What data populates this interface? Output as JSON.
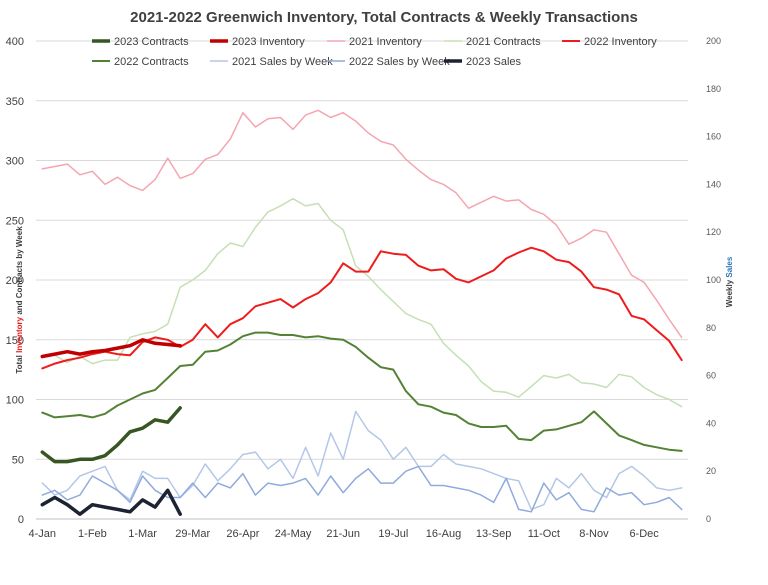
{
  "chart_data": {
    "type": "line",
    "title": "2021-2022 Greenwich Inventory, Total Contracts & Weekly Transactions",
    "ylabel_left_parts": [
      "Total ",
      "Inventory",
      " and Contracts by Week"
    ],
    "ylabel_right_parts": [
      "Weekly ",
      "Sales"
    ],
    "ylim_left": [
      0,
      400
    ],
    "ylim_right": [
      0,
      200
    ],
    "yticks_left": [
      "0",
      "50",
      "100",
      "150",
      "200",
      "250",
      "300",
      "350",
      "400"
    ],
    "yticks_right": [
      "0",
      "20",
      "40",
      "60",
      "80",
      "100",
      "120",
      "140",
      "160",
      "180",
      "200"
    ],
    "x_tick_labels": [
      "4-Jan",
      "1-Feb",
      "1-Mar",
      "29-Mar",
      "26-Apr",
      "24-May",
      "21-Jun",
      "19-Jul",
      "16-Aug",
      "13-Sep",
      "11-Oct",
      "8-Nov",
      "6-Dec"
    ],
    "x_tick_weeks": [
      0,
      4,
      8,
      12,
      16,
      20,
      24,
      28,
      32,
      36,
      40,
      44,
      48
    ],
    "grid": true,
    "legend_position": "top",
    "series": [
      {
        "name": "2023 Contracts",
        "axis": "left",
        "color": "#375623",
        "width": 3.5,
        "values": [
          56,
          48,
          48,
          50,
          50,
          53,
          62,
          73,
          76,
          83,
          81,
          93
        ]
      },
      {
        "name": "2023 Inventory",
        "axis": "left",
        "color": "#c00000",
        "width": 3.5,
        "values": [
          136,
          138,
          140,
          138,
          140,
          141,
          143,
          145,
          150,
          147,
          146,
          145
        ]
      },
      {
        "name": "2021 Inventory",
        "axis": "left",
        "color": "#f4a6b0",
        "width": 1.5,
        "values": [
          293,
          295,
          297,
          288,
          291,
          280,
          286,
          279,
          275,
          284,
          302,
          285,
          289,
          301,
          305,
          318,
          340,
          328,
          335,
          336,
          326,
          338,
          342,
          336,
          340,
          333,
          323,
          316,
          313,
          301,
          292,
          284,
          280,
          273,
          260,
          265,
          270,
          266,
          267,
          259,
          255,
          246,
          230,
          235,
          242,
          240,
          222,
          204,
          198,
          183,
          167,
          152
        ]
      },
      {
        "name": "2021 Contracts",
        "axis": "left",
        "color": "#c5e0b4",
        "width": 1.5,
        "values": [
          136,
          137,
          131,
          136,
          130,
          133,
          133,
          152,
          155,
          157,
          163,
          194,
          200,
          208,
          222,
          231,
          228,
          244,
          257,
          262,
          268,
          262,
          264,
          250,
          242,
          212,
          203,
          192,
          182,
          172,
          167,
          163,
          147,
          137,
          128,
          115,
          107,
          106,
          102,
          111,
          120,
          118,
          121,
          114,
          113,
          110,
          121,
          119,
          110,
          104,
          100,
          94
        ]
      },
      {
        "name": "2022 Inventory",
        "axis": "left",
        "color": "#ee1c1c",
        "width": 2,
        "values": [
          126,
          130,
          133,
          135,
          138,
          140,
          138,
          137,
          148,
          152,
          150,
          144,
          150,
          163,
          152,
          163,
          168,
          178,
          181,
          184,
          177,
          184,
          189,
          198,
          214,
          207,
          207,
          224,
          222,
          221,
          212,
          208,
          209,
          201,
          198,
          203,
          208,
          218,
          223,
          227,
          224,
          217,
          215,
          207,
          194,
          192,
          188,
          170,
          167,
          158,
          149,
          133
        ]
      },
      {
        "name": "2022 Contracts",
        "axis": "left",
        "color": "#548235",
        "width": 2,
        "values": [
          89,
          85,
          86,
          87,
          85,
          88,
          95,
          100,
          105,
          108,
          118,
          128,
          129,
          140,
          141,
          146,
          153,
          156,
          156,
          154,
          154,
          152,
          153,
          151,
          150,
          144,
          135,
          127,
          125,
          107,
          96,
          94,
          89,
          87,
          80,
          77,
          77,
          78,
          67,
          66,
          74,
          75,
          78,
          81,
          90,
          80,
          70,
          66,
          62,
          60,
          58,
          57
        ]
      },
      {
        "name": "2021 Sales by Week",
        "axis": "right",
        "color": "#b4c7e7",
        "width": 1.5,
        "values": [
          15,
          10,
          12,
          18,
          20,
          22,
          12,
          8,
          20,
          17,
          17,
          9,
          14,
          23,
          16,
          21,
          27,
          28,
          21,
          25,
          17,
          30,
          18,
          36,
          25,
          45,
          37,
          33,
          25,
          30,
          22,
          22,
          27,
          23,
          22,
          21,
          19,
          17,
          16,
          4,
          6,
          17,
          13,
          19,
          12,
          9,
          19,
          22,
          18,
          13,
          12,
          13
        ]
      },
      {
        "name": "2022 Sales by Week",
        "axis": "right",
        "color": "#8faadc",
        "width": 1.5,
        "values": [
          10,
          12,
          8,
          10,
          18,
          15,
          12,
          7,
          18,
          12,
          9,
          9,
          15,
          9,
          15,
          13,
          19,
          10,
          15,
          14,
          15,
          17,
          10,
          18,
          11,
          17,
          21,
          15,
          15,
          20,
          22,
          14,
          14,
          13,
          12,
          10,
          7,
          17,
          4,
          3,
          15,
          8,
          11,
          4,
          3,
          13,
          10,
          11,
          6,
          7,
          9,
          4
        ]
      },
      {
        "name": "2023 Sales",
        "axis": "right",
        "color": "#1c2333",
        "width": 3.5,
        "values": [
          6,
          9,
          6,
          2,
          6,
          5,
          4,
          3,
          8,
          5,
          12,
          2
        ]
      }
    ]
  }
}
